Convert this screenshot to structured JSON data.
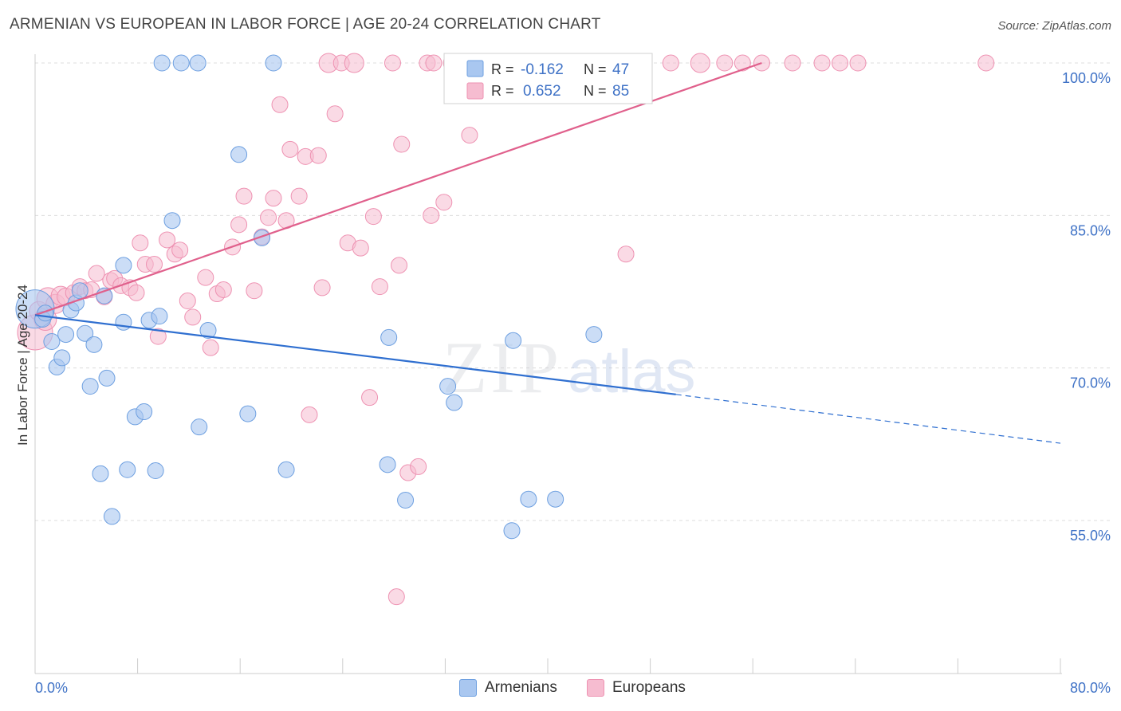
{
  "header": {
    "title": "ARMENIAN VS EUROPEAN IN LABOR FORCE | AGE 20-24 CORRELATION CHART",
    "source": "Source: ZipAtlas.com"
  },
  "watermark": {
    "zip": "ZIP",
    "atlas": "atlas"
  },
  "colors": {
    "armenians_fill": "#a9c7f0",
    "armenians_stroke": "#6d9fe0",
    "armenians_line": "#2f6fd0",
    "europeans_fill": "#f6bcd0",
    "europeans_stroke": "#ee92b2",
    "europeans_line": "#e0608c",
    "accent_text": "#3f72c6"
  },
  "chart_data": {
    "type": "scatter",
    "title": "ARMENIAN VS EUROPEAN IN LABOR FORCE | AGE 20-24 CORRELATION CHART",
    "xlabel": "",
    "ylabel": "In Labor Force | Age 20-24",
    "xlim": [
      0,
      80
    ],
    "ylim": [
      40,
      101
    ],
    "x_tick_labels": [
      "0.0%",
      "80.0%"
    ],
    "y_ticks": [
      55,
      70,
      85,
      100
    ],
    "y_tick_labels": [
      "55.0%",
      "70.0%",
      "85.0%",
      "100.0%"
    ],
    "grid": true,
    "legend": {
      "placement": "top-center",
      "rows": [
        {
          "r_label": "R =",
          "r_value": "-0.162",
          "n_label": "N =",
          "n_value": "47"
        },
        {
          "r_label": "R =",
          "r_value": "0.652",
          "n_label": "N =",
          "n_value": "85"
        }
      ]
    },
    "series": [
      {
        "name": "Armenians",
        "color": "#a9c7f0",
        "trend": {
          "x1": 0,
          "y1": 75.2,
          "x2": 50,
          "y2": 67.4,
          "dash_to_x": 80,
          "dash_to_y": 62.6
        },
        "points": [
          [
            0.0,
            75.8,
            24
          ],
          [
            0.6,
            74.8,
            10
          ],
          [
            0.8,
            75.4,
            10
          ],
          [
            1.3,
            72.6,
            10
          ],
          [
            1.7,
            70.1,
            10
          ],
          [
            2.1,
            71.0,
            10
          ],
          [
            2.4,
            73.3,
            10
          ],
          [
            2.8,
            75.7,
            10
          ],
          [
            3.2,
            76.4,
            10
          ],
          [
            3.5,
            77.6,
            10
          ],
          [
            3.9,
            73.4,
            10
          ],
          [
            4.3,
            68.2,
            10
          ],
          [
            4.6,
            72.3,
            10
          ],
          [
            5.1,
            59.6,
            10
          ],
          [
            5.4,
            77.1,
            10
          ],
          [
            5.6,
            69.0,
            10
          ],
          [
            6.0,
            55.4,
            10
          ],
          [
            6.9,
            74.5,
            10
          ],
          [
            6.9,
            80.1,
            10
          ],
          [
            7.2,
            60.0,
            10
          ],
          [
            7.8,
            65.2,
            10
          ],
          [
            8.5,
            65.7,
            10
          ],
          [
            8.9,
            74.7,
            10
          ],
          [
            9.4,
            59.9,
            10
          ],
          [
            9.7,
            75.1,
            10
          ],
          [
            9.9,
            100.0,
            10
          ],
          [
            10.7,
            84.5,
            10
          ],
          [
            11.4,
            100.0,
            10
          ],
          [
            12.7,
            100.0,
            10
          ],
          [
            12.8,
            64.2,
            10
          ],
          [
            13.5,
            73.7,
            10
          ],
          [
            15.9,
            91.0,
            10
          ],
          [
            16.6,
            65.5,
            10
          ],
          [
            17.7,
            82.8,
            10
          ],
          [
            18.6,
            100.0,
            10
          ],
          [
            19.6,
            60.0,
            10
          ],
          [
            27.5,
            60.5,
            10
          ],
          [
            27.6,
            73.0,
            10
          ],
          [
            28.9,
            57.0,
            10
          ],
          [
            32.2,
            68.2,
            10
          ],
          [
            32.7,
            66.6,
            10
          ],
          [
            34.8,
            100.0,
            10
          ],
          [
            37.2,
            54.0,
            10
          ],
          [
            37.3,
            72.7,
            10
          ],
          [
            38.5,
            57.1,
            10
          ],
          [
            40.6,
            57.1,
            10
          ],
          [
            43.6,
            73.3,
            10
          ]
        ]
      },
      {
        "name": "Europeans",
        "color": "#f6bcd0",
        "trend": {
          "x1": 0,
          "y1": 75.2,
          "x2": 56.7,
          "y2": 100.0
        },
        "points": [
          [
            0.0,
            73.5,
            22
          ],
          [
            0.3,
            75.6,
            12
          ],
          [
            0.8,
            74.8,
            14
          ],
          [
            1.0,
            76.8,
            14
          ],
          [
            1.6,
            76.3,
            12
          ],
          [
            2.0,
            77.1,
            12
          ],
          [
            2.4,
            77.0,
            11
          ],
          [
            3.0,
            77.4,
            10
          ],
          [
            3.5,
            78.0,
            10
          ],
          [
            3.9,
            77.6,
            10
          ],
          [
            4.4,
            77.7,
            10
          ],
          [
            4.8,
            79.3,
            10
          ],
          [
            5.4,
            77.0,
            10
          ],
          [
            5.9,
            78.6,
            10
          ],
          [
            6.2,
            78.8,
            10
          ],
          [
            6.7,
            78.1,
            10
          ],
          [
            7.4,
            77.9,
            10
          ],
          [
            7.9,
            77.4,
            10
          ],
          [
            8.2,
            82.3,
            10
          ],
          [
            8.6,
            80.2,
            10
          ],
          [
            9.3,
            80.2,
            10
          ],
          [
            9.6,
            73.1,
            10
          ],
          [
            10.3,
            82.6,
            10
          ],
          [
            10.9,
            81.2,
            10
          ],
          [
            11.3,
            81.6,
            10
          ],
          [
            11.9,
            76.6,
            10
          ],
          [
            12.3,
            75.0,
            10
          ],
          [
            13.3,
            78.9,
            10
          ],
          [
            13.7,
            72.0,
            10
          ],
          [
            14.2,
            77.3,
            10
          ],
          [
            14.7,
            77.7,
            10
          ],
          [
            15.4,
            81.9,
            10
          ],
          [
            15.9,
            84.1,
            10
          ],
          [
            16.3,
            86.9,
            10
          ],
          [
            17.1,
            77.6,
            10
          ],
          [
            17.7,
            82.9,
            10
          ],
          [
            18.2,
            84.8,
            10
          ],
          [
            18.6,
            86.7,
            10
          ],
          [
            19.1,
            95.9,
            10
          ],
          [
            19.6,
            84.5,
            10
          ],
          [
            19.9,
            91.5,
            10
          ],
          [
            20.6,
            86.9,
            10
          ],
          [
            21.1,
            90.8,
            10
          ],
          [
            21.4,
            65.4,
            10
          ],
          [
            22.1,
            90.9,
            10
          ],
          [
            22.4,
            77.9,
            10
          ],
          [
            22.9,
            100.0,
            12
          ],
          [
            23.4,
            95.0,
            10
          ],
          [
            23.9,
            100.0,
            10
          ],
          [
            24.4,
            82.3,
            10
          ],
          [
            24.9,
            100.0,
            12
          ],
          [
            25.4,
            81.8,
            10
          ],
          [
            26.1,
            67.1,
            10
          ],
          [
            26.4,
            84.9,
            10
          ],
          [
            26.9,
            78.0,
            10
          ],
          [
            27.9,
            100.0,
            10
          ],
          [
            28.4,
            80.1,
            10
          ],
          [
            28.6,
            92.0,
            10
          ],
          [
            28.2,
            47.5,
            10
          ],
          [
            29.1,
            59.7,
            10
          ],
          [
            29.9,
            60.3,
            10
          ],
          [
            30.6,
            100.0,
            10
          ],
          [
            30.9,
            85.0,
            10
          ],
          [
            31.1,
            100.0,
            10
          ],
          [
            31.9,
            86.3,
            10
          ],
          [
            32.6,
            100.0,
            12
          ],
          [
            33.9,
            92.9,
            10
          ],
          [
            34.4,
            100.0,
            10
          ],
          [
            36.6,
            100.0,
            10
          ],
          [
            38.4,
            100.0,
            10
          ],
          [
            40.6,
            100.0,
            12
          ],
          [
            42.5,
            100.0,
            10
          ],
          [
            44.1,
            100.0,
            10
          ],
          [
            46.1,
            81.2,
            10
          ],
          [
            47.5,
            100.0,
            10
          ],
          [
            49.6,
            100.0,
            10
          ],
          [
            51.9,
            100.0,
            12
          ],
          [
            53.8,
            100.0,
            10
          ],
          [
            55.2,
            100.0,
            10
          ],
          [
            56.7,
            100.0,
            10
          ],
          [
            59.1,
            100.0,
            10
          ],
          [
            61.4,
            100.0,
            10
          ],
          [
            62.8,
            100.0,
            10
          ],
          [
            64.2,
            100.0,
            10
          ],
          [
            74.2,
            100.0,
            10
          ]
        ]
      }
    ]
  },
  "bottom_legend": {
    "armenians": "Armenians",
    "europeans": "Europeans"
  }
}
